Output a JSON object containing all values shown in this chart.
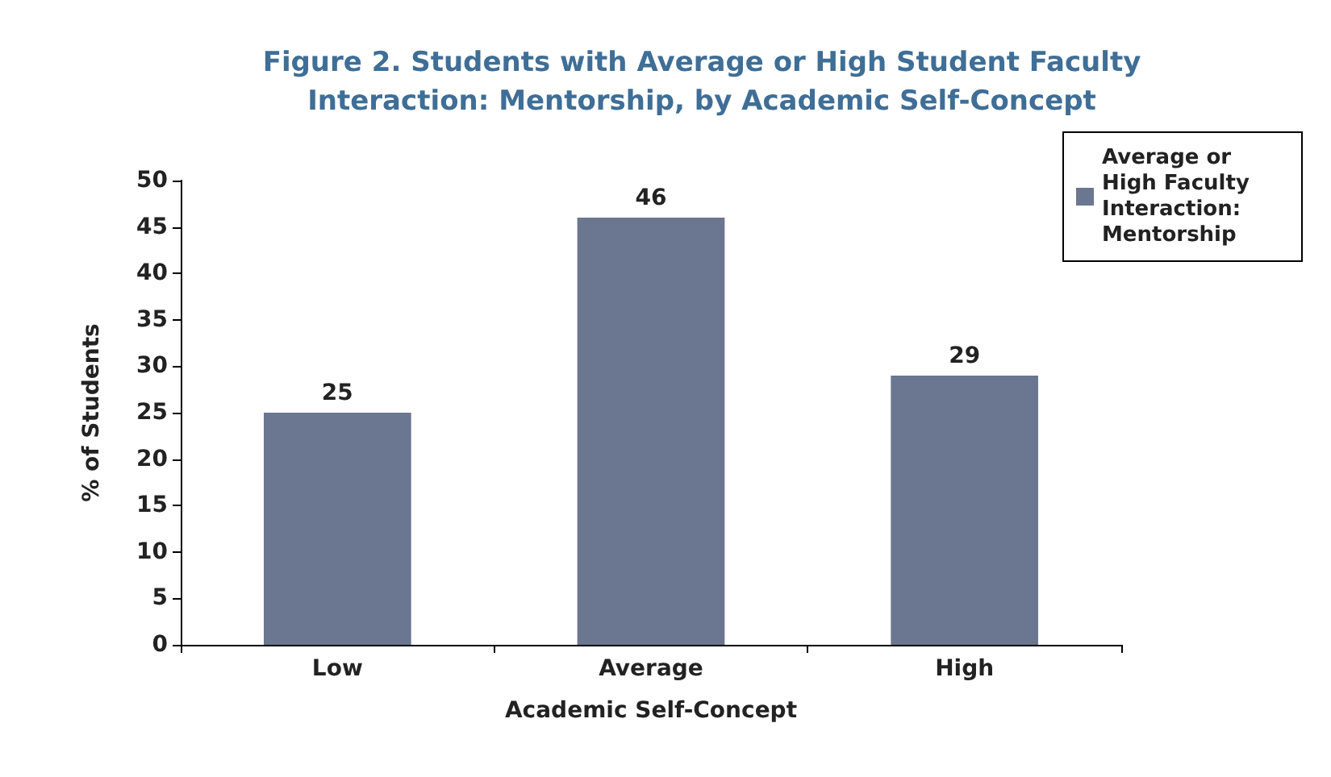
{
  "chart_data": {
    "type": "bar",
    "title": "Figure 2. Students with Average or High Student Faculty\nInteraction: Mentorship, by Academic Self-Concept",
    "xlabel": "Academic Self-Concept",
    "ylabel": "% of Students",
    "categories": [
      "Low",
      "Average",
      "High"
    ],
    "series": [
      {
        "name": "Average or High Faculty Interaction: Mentorship",
        "color": "#6b7690",
        "values": [
          25,
          46,
          29
        ]
      }
    ],
    "ylim": [
      0,
      50
    ],
    "yticks": [
      0,
      5,
      10,
      15,
      20,
      25,
      30,
      35,
      40,
      45,
      50
    ],
    "data_labels": true,
    "grid": false,
    "legend": "top right"
  }
}
